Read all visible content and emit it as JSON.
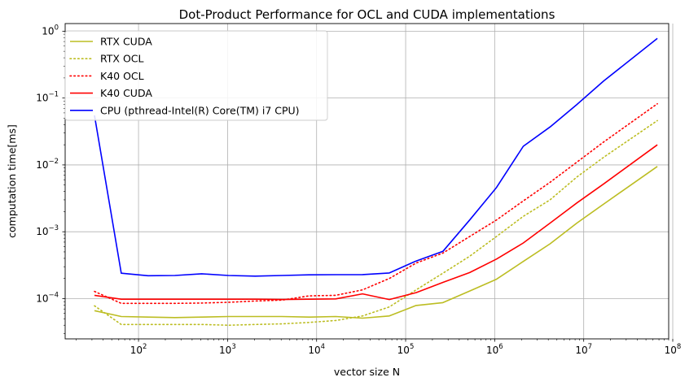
{
  "chart_data": {
    "type": "line",
    "title": "Dot-Product Performance for OCL and CUDA implementations",
    "xlabel": "vector size N",
    "ylabel": "computation time[ms]",
    "xscale": "log",
    "yscale": "log",
    "xlim": [
      15,
      90000000
    ],
    "ylim": [
      2.5e-05,
      1.3
    ],
    "xticks": [
      {
        "value": 100,
        "base": "10",
        "exp": "2"
      },
      {
        "value": 1000,
        "base": "10",
        "exp": "3"
      },
      {
        "value": 10000,
        "base": "10",
        "exp": "4"
      },
      {
        "value": 100000,
        "base": "10",
        "exp": "5"
      },
      {
        "value": 1000000,
        "base": "10",
        "exp": "6"
      },
      {
        "value": 10000000,
        "base": "10",
        "exp": "7"
      },
      {
        "value": 100000000,
        "base": "10",
        "exp": "8"
      }
    ],
    "yticks": [
      {
        "value": 0.0001,
        "base": "10",
        "exp": "−4"
      },
      {
        "value": 0.001,
        "base": "10",
        "exp": "−3"
      },
      {
        "value": 0.01,
        "base": "10",
        "exp": "−2"
      },
      {
        "value": 0.1,
        "base": "10",
        "exp": "−1"
      },
      {
        "value": 1,
        "base": "10",
        "exp": "0"
      }
    ],
    "grid": true,
    "legend_position": "top-left",
    "x": [
      32,
      64,
      128,
      256,
      512,
      1024,
      2048,
      4096,
      8192,
      16384,
      32768,
      65536,
      131072,
      262144,
      524288,
      1048576,
      2097152,
      4194304,
      8388608,
      16777216,
      67108864
    ],
    "series": [
      {
        "name": "RTX CUDA",
        "color": "#bcbd22",
        "dash": "solid",
        "values": [
          6.6e-05,
          5.4e-05,
          5.3e-05,
          5.2e-05,
          5.3e-05,
          5.4e-05,
          5.4e-05,
          5.4e-05,
          5.3e-05,
          5.4e-05,
          5.1e-05,
          5.5e-05,
          7.9e-05,
          8.7e-05,
          0.00013,
          0.000195,
          0.00036,
          0.00066,
          0.00135,
          0.0026,
          0.0095
        ]
      },
      {
        "name": "RTX OCL",
        "color": "#bcbd22",
        "dash": "dotted",
        "values": [
          7.8e-05,
          4.1e-05,
          4.1e-05,
          4.1e-05,
          4.1e-05,
          4e-05,
          4.1e-05,
          4.2e-05,
          4.4e-05,
          4.7e-05,
          5.5e-05,
          7.5e-05,
          0.000135,
          0.00024,
          0.00043,
          0.00085,
          0.0017,
          0.003,
          0.0066,
          0.013,
          0.046
        ]
      },
      {
        "name": "K40 OCL",
        "color": "#ff0000",
        "dash": "dotted",
        "values": [
          0.000128,
          8.5e-05,
          8.5e-05,
          8.5e-05,
          8.6e-05,
          8.8e-05,
          9.2e-05,
          9.5e-05,
          0.00011,
          0.000112,
          0.000135,
          0.0002,
          0.00034,
          0.00048,
          0.00085,
          0.0015,
          0.0029,
          0.0055,
          0.011,
          0.022,
          0.082
        ]
      },
      {
        "name": "K40 CUDA",
        "color": "#ff0000",
        "dash": "solid",
        "values": [
          0.000112,
          9.8e-05,
          9.8e-05,
          9.8e-05,
          9.8e-05,
          9.8e-05,
          9.8e-05,
          9.7e-05,
          9.8e-05,
          9.9e-05,
          0.000118,
          9.7e-05,
          0.000123,
          0.000175,
          0.000245,
          0.00039,
          0.00068,
          0.00135,
          0.0027,
          0.0052,
          0.02
        ]
      },
      {
        "name": "CPU (pthread-Intel(R) Core(TM) i7 CPU)",
        "color": "#0000ff",
        "dash": "solid",
        "values": [
          0.055,
          0.00024,
          0.00022,
          0.000222,
          0.000235,
          0.000222,
          0.000217,
          0.000222,
          0.000227,
          0.000228,
          0.000229,
          0.000242,
          0.000365,
          0.00051,
          0.0015,
          0.0046,
          0.019,
          0.037,
          0.08,
          0.18,
          0.78
        ]
      }
    ]
  }
}
